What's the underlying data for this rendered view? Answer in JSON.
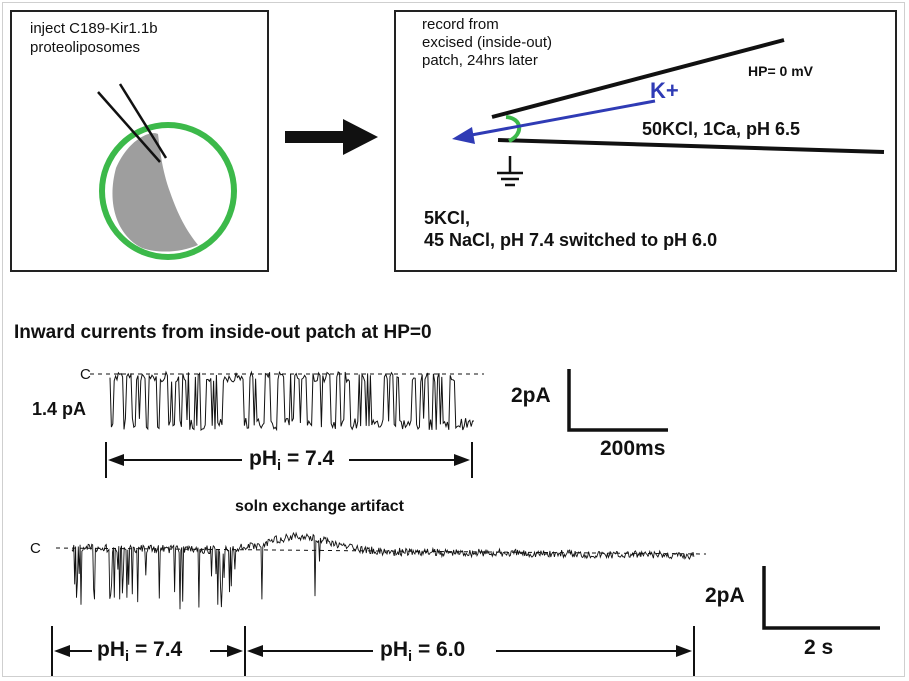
{
  "left_panel": {
    "line1": "inject C189-Kir1.1b",
    "line2": "proteoliposomes"
  },
  "right_panel": {
    "record_line1": "record from",
    "record_line2": "excised (inside-out)",
    "record_line3": "patch, 24hrs later",
    "hp_label": "HP= 0 mV",
    "ion_label": "K+",
    "pipette_solution": "50KCl, 1Ca, pH 6.5",
    "bath_line1": "5KCl,",
    "bath_line2": "45 NaCl, pH 7.4 switched to pH 6.0"
  },
  "section_title": "Inward currents from inside-out patch at HP=0",
  "trace1": {
    "closed_marker": "C",
    "amplitude_label": "1.4 pA",
    "ph_prefix": "pH",
    "ph_sub": "i",
    "ph_value": "= 7.4",
    "scale_y": "2pA",
    "scale_x": "200ms"
  },
  "trace2": {
    "closed_marker": "C",
    "artifact_label": "soln exchange artifact",
    "ph1_prefix": "pH",
    "ph1_sub": "i",
    "ph1_value": "= 7.4",
    "ph2_prefix": "pH",
    "ph2_sub": "i",
    "ph2_value": "= 6.0",
    "scale_y": "2pA",
    "scale_x": "2 s"
  },
  "colors": {
    "liposome_outline": "#3cb94a",
    "liposome_fill": "#9e9e9e",
    "ion_arrow": "#2f3bb5",
    "ink": "#111111"
  }
}
